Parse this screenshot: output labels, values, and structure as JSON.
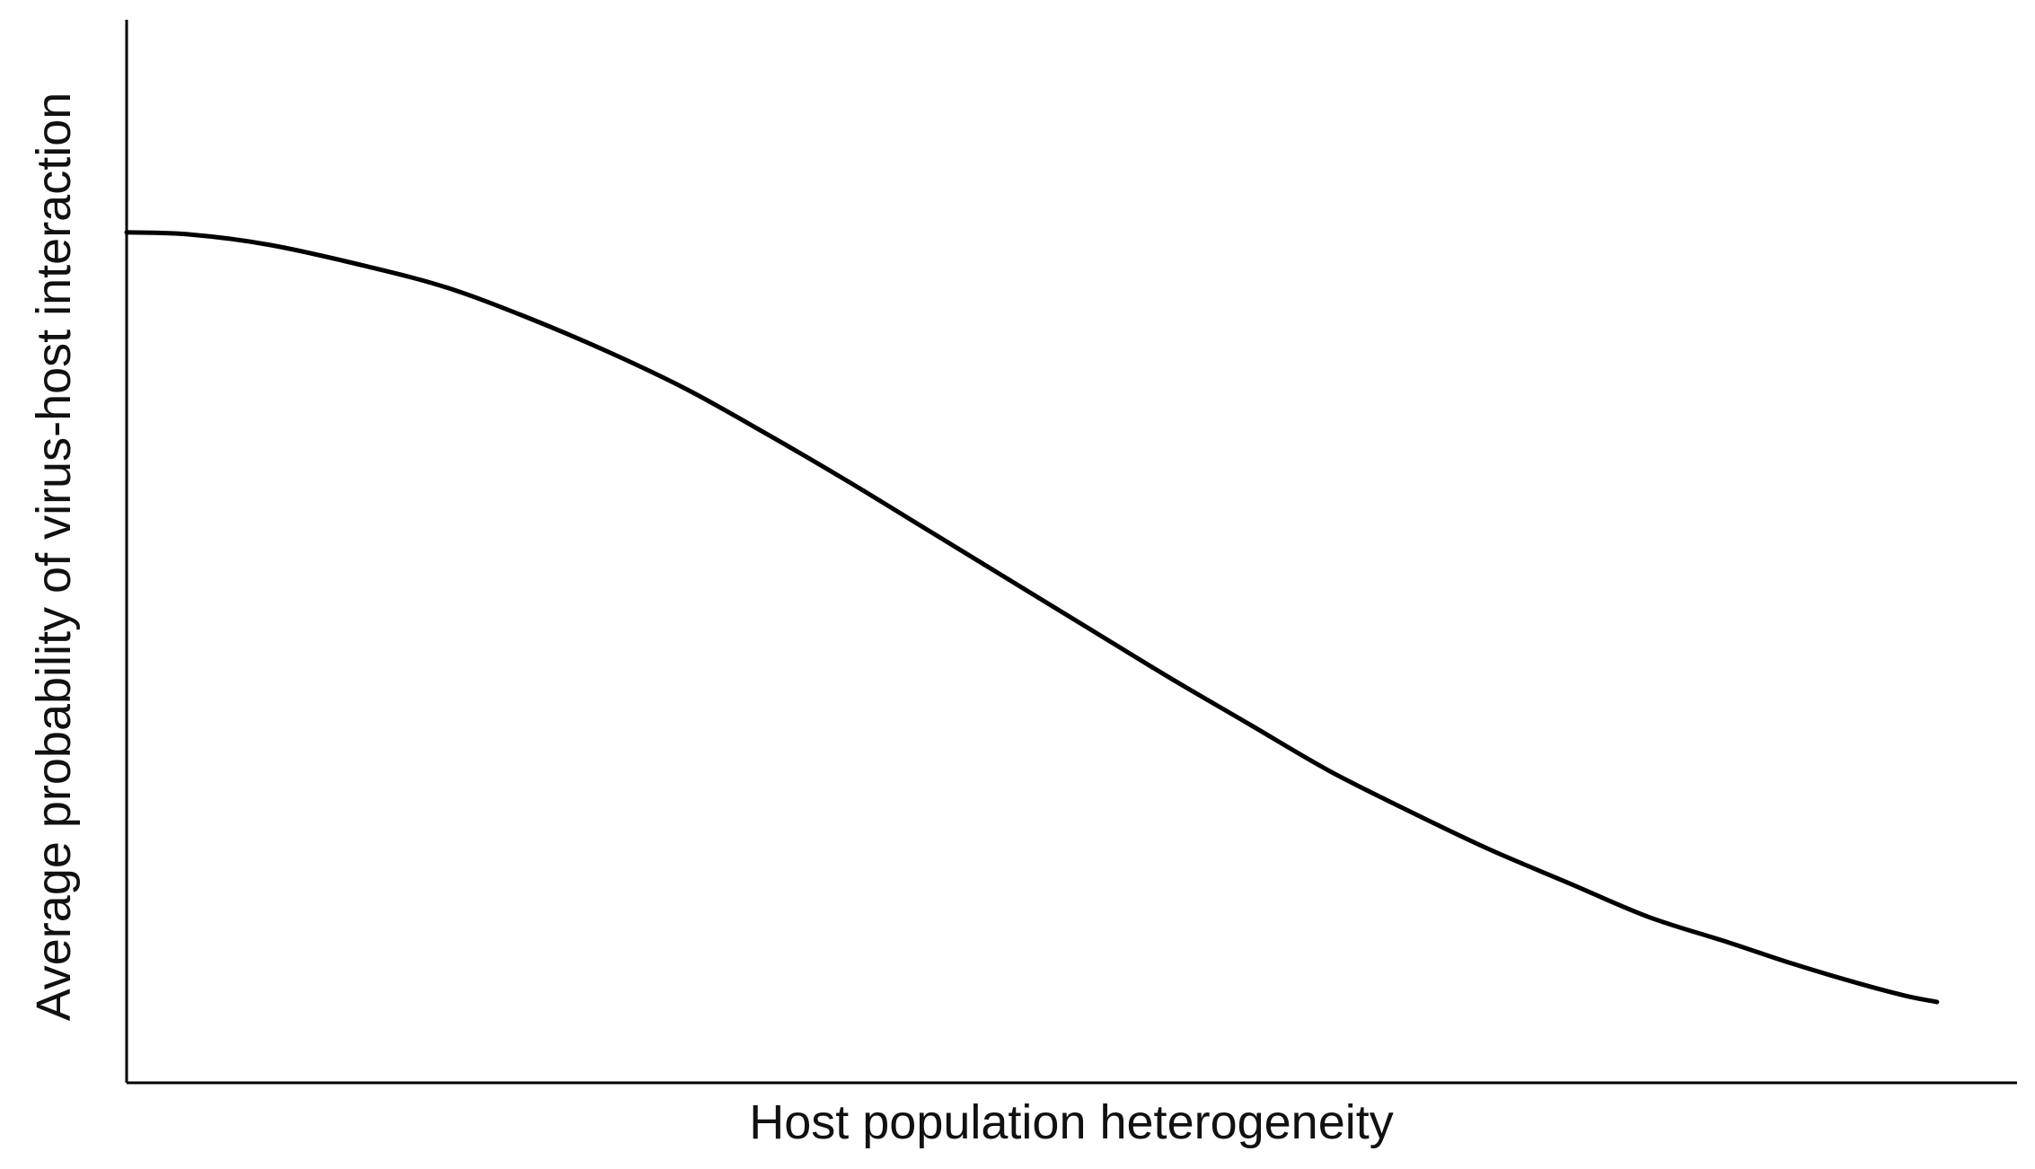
{
  "chart_data": {
    "type": "line",
    "title": "",
    "xlabel": "Host population heterogeneity",
    "ylabel": "Average probability of virus-host interaction",
    "grid": false,
    "xlim": [
      0,
      1.18
    ],
    "ylim": [
      0,
      1
    ],
    "series": [
      {
        "values": [
          {
            "x": 0.0,
            "y": 0.8
          },
          {
            "x": 0.04,
            "y": 0.798
          },
          {
            "x": 0.09,
            "y": 0.788
          },
          {
            "x": 0.15,
            "y": 0.768
          },
          {
            "x": 0.2,
            "y": 0.748
          },
          {
            "x": 0.25,
            "y": 0.72
          },
          {
            "x": 0.3,
            "y": 0.688
          },
          {
            "x": 0.35,
            "y": 0.652
          },
          {
            "x": 0.4,
            "y": 0.61
          },
          {
            "x": 0.45,
            "y": 0.566
          },
          {
            "x": 0.5,
            "y": 0.52
          },
          {
            "x": 0.55,
            "y": 0.474
          },
          {
            "x": 0.6,
            "y": 0.428
          },
          {
            "x": 0.65,
            "y": 0.382
          },
          {
            "x": 0.7,
            "y": 0.338
          },
          {
            "x": 0.75,
            "y": 0.294
          },
          {
            "x": 0.8,
            "y": 0.256
          },
          {
            "x": 0.85,
            "y": 0.22
          },
          {
            "x": 0.9,
            "y": 0.188
          },
          {
            "x": 0.95,
            "y": 0.156
          },
          {
            "x": 1.0,
            "y": 0.132
          },
          {
            "x": 1.04,
            "y": 0.112
          },
          {
            "x": 1.08,
            "y": 0.094
          },
          {
            "x": 1.11,
            "y": 0.082
          },
          {
            "x": 1.13,
            "y": 0.076
          }
        ],
        "color": "#000000"
      }
    ]
  }
}
